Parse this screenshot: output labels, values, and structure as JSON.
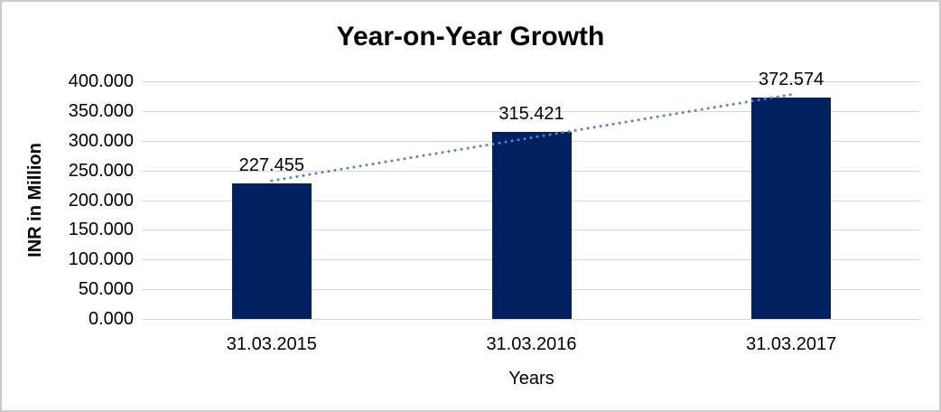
{
  "chart_data": {
    "type": "bar",
    "title": "Year-on-Year Growth",
    "categories": [
      "31.03.2015",
      "31.03.2016",
      "31.03.2017"
    ],
    "values": [
      227.455,
      315.421,
      372.574
    ],
    "data_labels": [
      "227.455",
      "315.421",
      "372.574"
    ],
    "xlabel": "Years",
    "ylabel": "INR in Million",
    "ylim": [
      0,
      400
    ],
    "ytick_step": 50,
    "ytick_labels": [
      "0.000",
      "50.000",
      "100.000",
      "150.000",
      "200.000",
      "250.000",
      "300.000",
      "350.000",
      "400.000"
    ],
    "grid": true,
    "legend_position": "none",
    "trendline": {
      "type": "linear",
      "style": "dotted"
    },
    "colors": {
      "bar": "#002060",
      "trendline": "#4a86c8",
      "gridline": "#d9d9d9",
      "frame_border": "#cccccc",
      "text": "#000000"
    }
  }
}
